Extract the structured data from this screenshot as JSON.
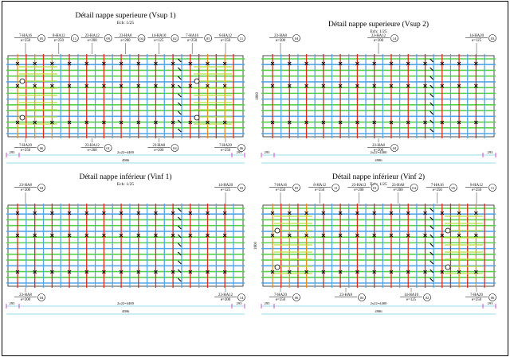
{
  "drawing": {
    "colors": {
      "paper": "#ffffff",
      "frame": "#000000",
      "slab": "#222222",
      "bar_green": "#59d04a",
      "bar_blue": "#55a6e8",
      "bar_red": "#e42a16",
      "bar_orange": "#f08a1a",
      "bar_lime": "#b8e03a",
      "chair": "#000000",
      "dim_line": "#30b8d8",
      "dim_tick": "#d020c8",
      "callout": "#000000"
    },
    "panels": [
      {
        "id": "vsup1",
        "title": "Détail nappe superieure (Vsup 1)",
        "scale": "Ech: 1/25",
        "zones": true,
        "thickness_label": "",
        "dims": {
          "left": "293",
          "right": "293",
          "mid": "2x22=4400",
          "total": "4986"
        },
        "callouts": [
          {
            "mark": "05",
            "lines": [
              "7-HA16",
              "e=250"
            ],
            "side": "top"
          },
          {
            "mark": "11",
            "lines": [
              "8-HA12",
              "e=250"
            ],
            "side": "top"
          },
          {
            "mark": "09",
            "lines": [
              "23-HA12",
              "e=200"
            ],
            "side": "top"
          },
          {
            "mark": "04",
            "lines": [
              "23-HA8",
              "e=200"
            ],
            "side": "top"
          },
          {
            "mark": "02",
            "lines": [
              "14-HA10",
              "e=125"
            ],
            "side": "top"
          },
          {
            "mark": "05",
            "lines": [
              "7-HA16",
              "e=250"
            ],
            "side": "top"
          },
          {
            "mark": "11",
            "lines": [
              "8-HA12",
              "e=250"
            ],
            "side": "top"
          },
          {
            "mark": "06",
            "lines": [
              "7-HA20",
              "e=250"
            ],
            "side": "bottom"
          },
          {
            "mark": "01",
            "lines": [
              "23-HA12",
              "e=200"
            ],
            "side": "bottom"
          },
          {
            "mark": "04",
            "lines": [
              "23-HA8",
              "e=200"
            ],
            "side": "bottom"
          },
          {
            "mark": "06",
            "lines": [
              "7-HA20",
              "e=250"
            ],
            "side": "bottom"
          }
        ]
      },
      {
        "id": "vsup2",
        "title": "Détail nappe superieure (Vsup 2)",
        "scale": "Ech: 1/25",
        "zones": false,
        "thickness_label": "1800",
        "dims": {
          "left": "293",
          "right": "293",
          "mid": "2x22=4400",
          "total": "4986"
        },
        "callouts": [
          {
            "mark": "04",
            "lines": [
              "23-HA8",
              "e=200"
            ],
            "side": "top"
          },
          {
            "mark": "14",
            "lines": [
              "23-HA12",
              "e=200"
            ],
            "side": "top"
          },
          {
            "mark": "03",
            "lines": [
              "14-HA20",
              "e=125"
            ],
            "side": "top"
          },
          {
            "mark": "04",
            "lines": [
              "23-HA8",
              "e=200"
            ],
            "side": "bottom"
          }
        ]
      },
      {
        "id": "vinf1",
        "title": "Détail nappe inférieur (Vinf 1)",
        "scale": "Ech: 1/25",
        "zones": false,
        "thickness_label": "",
        "dims": {
          "left": "293",
          "right": "293",
          "mid": "2x22=4400",
          "total": "4986"
        },
        "callouts": [
          {
            "mark": "04",
            "lines": [
              "23-HA8",
              "e=200"
            ],
            "side": "top"
          },
          {
            "mark": "03",
            "lines": [
              "14-HA20",
              "e=125"
            ],
            "side": "top"
          },
          {
            "mark": "04",
            "lines": [
              "23-HA8",
              "e=200"
            ],
            "side": "bottom"
          },
          {
            "mark": "14",
            "lines": [
              "23-HA12",
              "e=200"
            ],
            "side": "bottom"
          }
        ]
      },
      {
        "id": "vinf2",
        "title": "Détail nappe inférieur (Vinf 2)",
        "scale": "Ech: 1/25",
        "zones": true,
        "thickness_label": "1800",
        "dims": {
          "left": "293",
          "right": "293",
          "mid": "2x22=4400",
          "total": "4986"
        },
        "callouts": [
          {
            "mark": "05",
            "lines": [
              "7-HA16",
              "e=250"
            ],
            "side": "top"
          },
          {
            "mark": "11",
            "lines": [
              "8-HA12",
              "e=250"
            ],
            "side": "top"
          },
          {
            "mark": "01",
            "lines": [
              "23-HA12",
              "e=200"
            ],
            "side": "top"
          },
          {
            "mark": "04",
            "lines": [
              "23-HA8",
              "e=200"
            ],
            "side": "top"
          },
          {
            "mark": "05",
            "lines": [
              "7-HA16",
              "e=250"
            ],
            "side": "top"
          },
          {
            "mark": "11",
            "lines": [
              "8-HA12",
              "e=250"
            ],
            "side": "top"
          },
          {
            "mark": "06",
            "lines": [
              "7-HA20",
              "e=250"
            ],
            "side": "bottom"
          },
          {
            "mark": "04",
            "lines": [
              "23-HA8"
            ],
            "side": "bottom"
          },
          {
            "mark": "02",
            "lines": [
              "14-HA10",
              "e=125"
            ],
            "side": "bottom"
          },
          {
            "mark": "06",
            "lines": [
              "7-HA20",
              "e=250"
            ],
            "side": "bottom"
          }
        ]
      }
    ]
  }
}
